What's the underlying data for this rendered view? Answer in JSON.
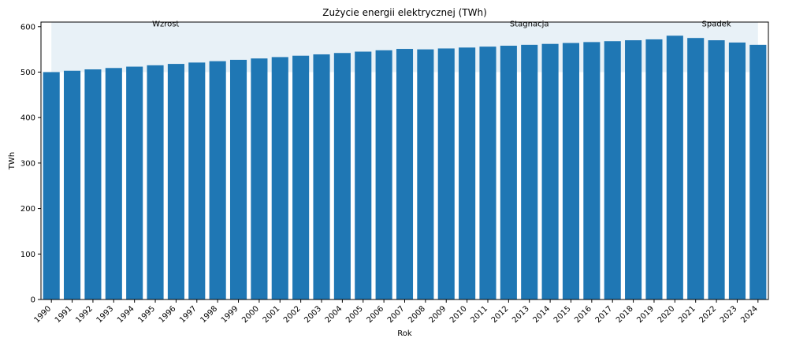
{
  "chart_data": {
    "type": "bar",
    "title": "Zużycie energii elektrycznej (TWh)",
    "xlabel": "Rok",
    "ylabel": "TWh",
    "ylim": [
      0,
      610
    ],
    "yticks": [
      0,
      100,
      200,
      300,
      400,
      500,
      600
    ],
    "categories": [
      "1990",
      "1991",
      "1992",
      "1993",
      "1994",
      "1995",
      "1996",
      "1997",
      "1998",
      "1999",
      "2000",
      "2001",
      "2002",
      "2003",
      "2004",
      "2005",
      "2006",
      "2007",
      "2008",
      "2009",
      "2010",
      "2011",
      "2012",
      "2013",
      "2014",
      "2015",
      "2016",
      "2017",
      "2018",
      "2019",
      "2020",
      "2021",
      "2022",
      "2023",
      "2024"
    ],
    "values": [
      500,
      503,
      506,
      509,
      512,
      515,
      518,
      521,
      524,
      527,
      530,
      533,
      536,
      539,
      542,
      545,
      548,
      551,
      550,
      552,
      554,
      556,
      558,
      560,
      562,
      564,
      566,
      568,
      570,
      572,
      580,
      575,
      570,
      565,
      560
    ],
    "bar_color": "#1f77b4",
    "shade": {
      "x_from": "1990",
      "x_to": "2024",
      "y_from": 500,
      "y_to": 610,
      "color": "#1f77b4",
      "alpha": 0.1
    },
    "annotations": [
      {
        "text": "Wzrost",
        "x": 1995.5,
        "y": 600
      },
      {
        "text": "Stagnacja",
        "x": 2013,
        "y": 600
      },
      {
        "text": "Spadek",
        "x": 2022,
        "y": 600
      }
    ],
    "grid": false,
    "legend": "none"
  }
}
